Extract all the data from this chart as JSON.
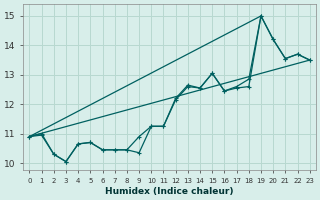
{
  "xlabel": "Humidex (Indice chaleur)",
  "xlim": [
    -0.5,
    23.5
  ],
  "ylim": [
    9.75,
    15.4
  ],
  "bg_color": "#d8eeea",
  "grid_color": "#b8d8d0",
  "line_color": "#006060",
  "xticks": [
    0,
    1,
    2,
    3,
    4,
    5,
    6,
    7,
    8,
    9,
    10,
    11,
    12,
    13,
    14,
    15,
    16,
    17,
    18,
    19,
    20,
    21,
    22,
    23
  ],
  "yticks": [
    10,
    11,
    12,
    13,
    14,
    15
  ],
  "data_x": [
    0,
    1,
    2,
    3,
    4,
    5,
    6,
    7,
    8,
    9,
    10,
    11,
    12,
    13,
    14,
    15,
    16,
    17,
    18,
    19,
    20,
    21,
    22,
    23
  ],
  "data_y": [
    10.9,
    11.0,
    10.3,
    10.05,
    10.65,
    10.7,
    10.45,
    10.45,
    10.45,
    10.9,
    11.25,
    11.25,
    12.2,
    12.65,
    12.55,
    13.05,
    12.45,
    12.6,
    12.85,
    15.0,
    14.2,
    13.55,
    13.7,
    13.5
  ],
  "trend1_x": [
    0,
    23
  ],
  "trend1_y": [
    10.9,
    13.5
  ],
  "trend2_x": [
    0,
    19
  ],
  "trend2_y": [
    10.9,
    15.0
  ],
  "min_line_x": [
    0,
    1,
    2,
    3,
    4,
    5,
    6,
    7,
    8,
    9,
    10,
    11,
    12,
    13,
    14,
    15,
    16,
    17,
    18,
    19,
    20,
    21,
    22,
    23
  ],
  "min_line_y": [
    10.9,
    10.95,
    10.3,
    10.05,
    10.65,
    10.7,
    10.45,
    10.45,
    10.45,
    10.35,
    11.25,
    11.25,
    12.15,
    12.6,
    12.55,
    13.05,
    12.45,
    12.55,
    12.6,
    15.0,
    14.2,
    13.55,
    13.7,
    13.5
  ]
}
